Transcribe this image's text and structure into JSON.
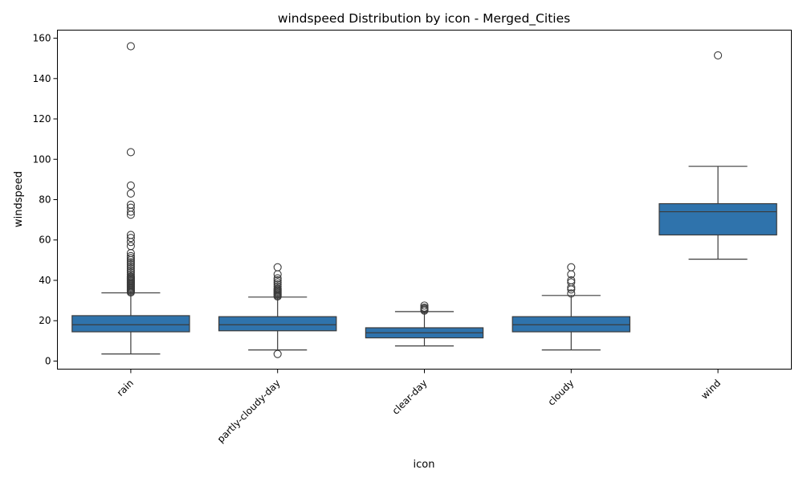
{
  "chart_data": {
    "type": "box",
    "title": "windspeed Distribution by icon - Merged_Cities",
    "xlabel": "icon",
    "ylabel": "windspeed",
    "categories": [
      "rain",
      "partly-cloudy-day",
      "clear-day",
      "cloudy",
      "wind"
    ],
    "ylim": [
      -4,
      164
    ],
    "yticks": [
      0,
      20,
      40,
      60,
      80,
      100,
      120,
      140,
      160
    ],
    "box_color": "#2f73ac",
    "line_color": "#3b3b3b",
    "grid": false,
    "boxes": [
      {
        "category": "rain",
        "whisker_low": 3.5,
        "q1": 14.5,
        "median": 18,
        "q3": 22.5,
        "whisker_high": 33.8,
        "outliers": [
          34,
          34.5,
          35,
          35.5,
          36,
          36.5,
          37,
          37.5,
          38,
          38.5,
          39,
          39.5,
          40,
          40.5,
          41,
          41.5,
          42,
          43,
          44,
          45,
          46,
          47,
          48,
          49,
          50,
          51,
          52,
          53.5,
          57,
          59,
          61,
          62.5,
          72.5,
          74,
          76,
          77.5,
          83,
          87,
          103.5,
          156
        ]
      },
      {
        "category": "partly-cloudy-day",
        "whisker_low": 5.5,
        "q1": 15,
        "median": 18,
        "q3": 22,
        "whisker_high": 31.7,
        "outliers": [
          3.5,
          32,
          32.5,
          33,
          33.5,
          34,
          34.5,
          35,
          35.5,
          36,
          37,
          38,
          39,
          40,
          41,
          43,
          46.5
        ]
      },
      {
        "category": "clear-day",
        "whisker_low": 7.5,
        "q1": 11.5,
        "median": 14,
        "q3": 16.5,
        "whisker_high": 24.5,
        "outliers": [
          25,
          25.5,
          26,
          26.5,
          27.5
        ]
      },
      {
        "category": "cloudy",
        "whisker_low": 5.5,
        "q1": 14.5,
        "median": 18,
        "q3": 22,
        "whisker_high": 32.5,
        "outliers": [
          33.5,
          35.5,
          36.5,
          39,
          40,
          43,
          46.5
        ]
      },
      {
        "category": "wind",
        "whisker_low": 50.5,
        "q1": 62.5,
        "median": 74,
        "q3": 78,
        "whisker_high": 96.5,
        "outliers": [
          151.5
        ]
      }
    ]
  }
}
